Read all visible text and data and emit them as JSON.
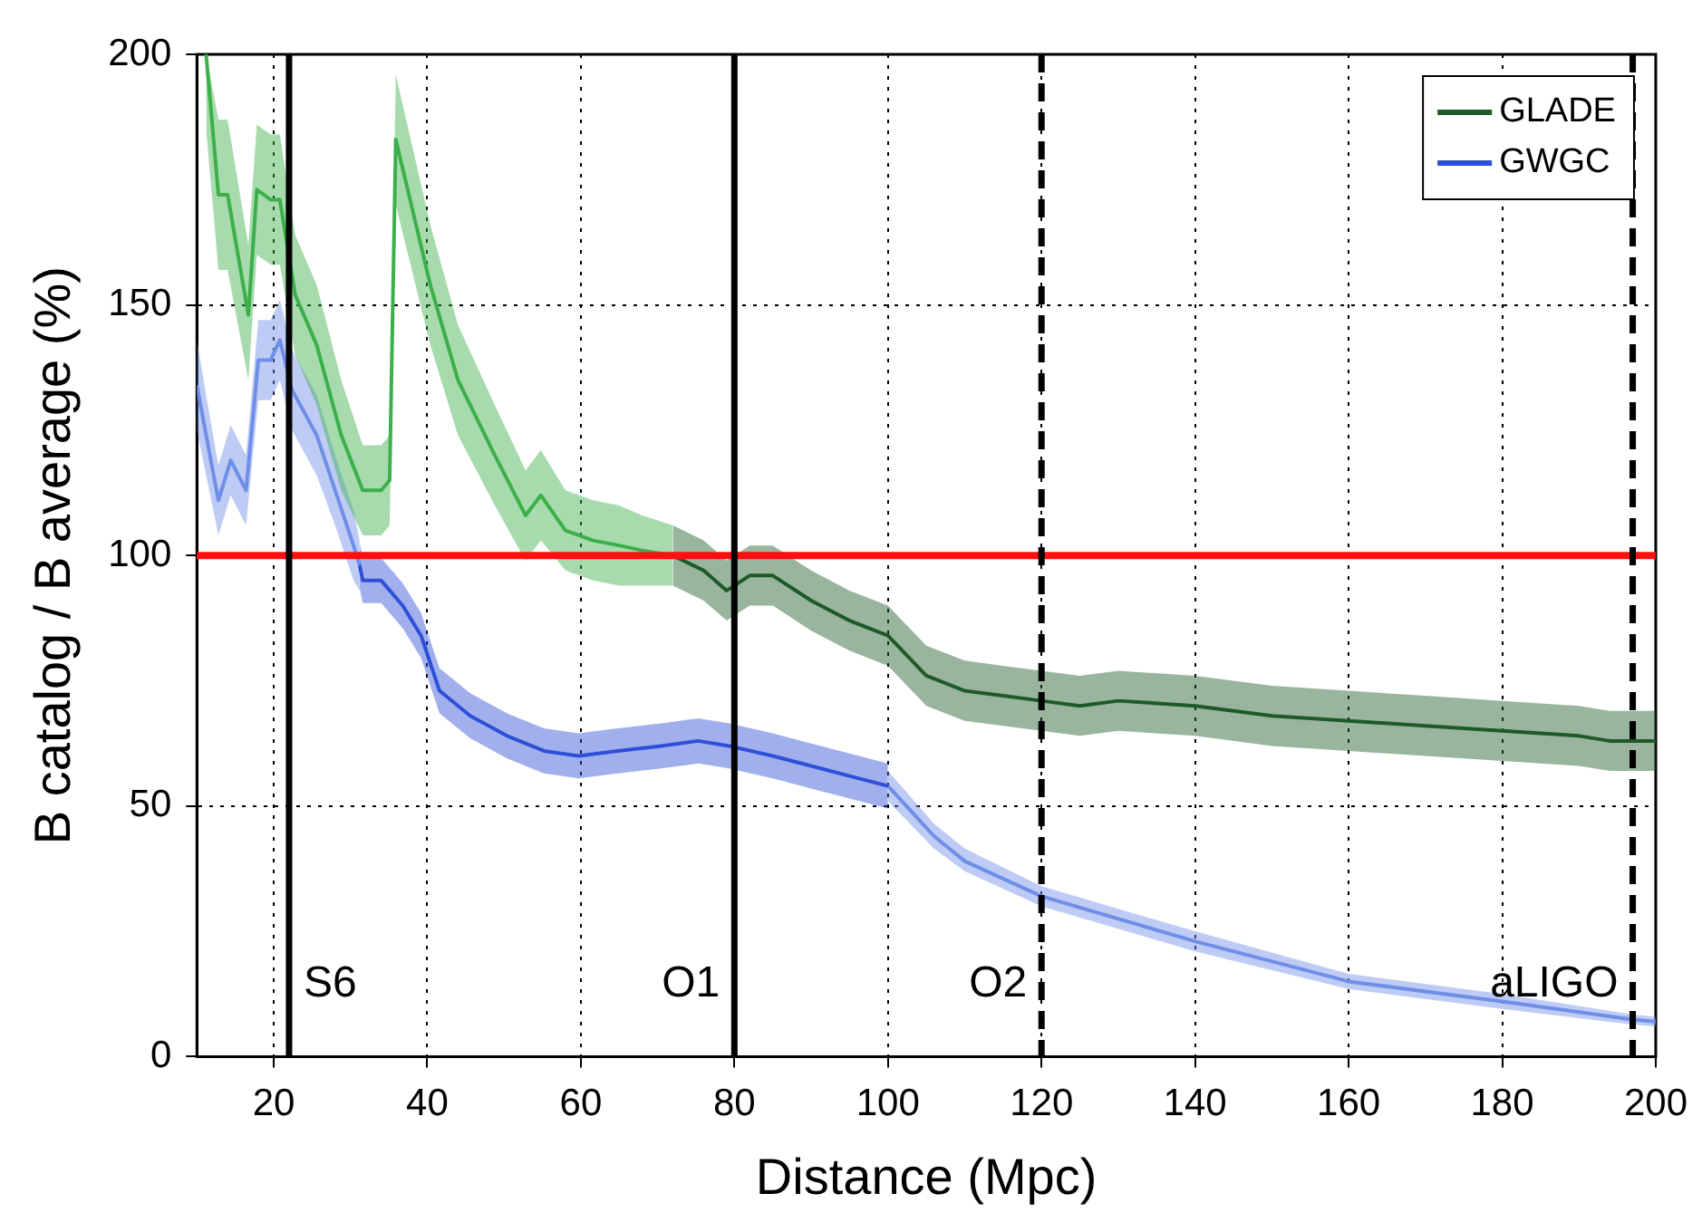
{
  "chart_data": {
    "type": "line",
    "xlabel": "Distance (Mpc)",
    "ylabel": "B catalog / B average (%)",
    "xlim": [
      10,
      200
    ],
    "xticks": [
      20,
      40,
      60,
      80,
      100,
      120,
      140,
      160,
      180,
      200
    ],
    "ylim": [
      0,
      200
    ],
    "yticks": [
      0,
      50,
      100,
      150,
      200
    ],
    "grid": true,
    "legend": "top right",
    "marker": "none",
    "series": [
      {
        "name": "GLADE",
        "color": "#1e5a28",
        "x": [
          72,
          76,
          79,
          82,
          85,
          90,
          95,
          100,
          105,
          110,
          115,
          120,
          125,
          130,
          140,
          150,
          160,
          170,
          180,
          190,
          194,
          197,
          200
        ],
        "values": [
          100,
          97,
          93,
          96,
          96,
          91,
          87,
          84,
          76,
          73,
          72,
          71,
          70,
          71,
          70,
          68,
          67,
          66,
          65,
          64,
          63,
          63,
          63
        ],
        "lower": [
          94,
          91,
          87,
          90,
          90,
          85,
          81,
          78,
          70,
          67,
          66,
          65,
          64,
          65,
          64,
          62,
          61,
          60,
          59,
          58,
          57,
          57,
          57
        ],
        "upper": [
          106,
          103,
          99,
          102,
          102,
          97,
          93,
          90,
          82,
          79,
          78,
          77,
          76,
          77,
          76,
          74,
          73,
          72,
          71,
          70,
          69,
          69,
          69
        ]
      },
      {
        "color": "#3cb04c",
        "x": [
          11.2,
          12.8,
          14,
          16.7,
          17.8,
          19.6,
          20.8,
          22.8,
          25.6,
          28.8,
          31.6,
          34,
          35.1,
          35.9,
          40.4,
          44,
          48.8,
          52.8,
          54.8,
          58,
          61.6,
          65,
          68,
          72
        ],
        "values": [
          200,
          172,
          172,
          148,
          173,
          171,
          171,
          152,
          142,
          124,
          113,
          113,
          115,
          183,
          154,
          135,
          120,
          108,
          112,
          105,
          103,
          102,
          101,
          100
        ],
        "lower": [
          185,
          157,
          157,
          135,
          160,
          158,
          158,
          140,
          130,
          113,
          104,
          104,
          106,
          170,
          142,
          124,
          110,
          99,
          103,
          97,
          95,
          94,
          94,
          94
        ],
        "upper": [
          200,
          187,
          187,
          162,
          186,
          184,
          184,
          164,
          154,
          135,
          122,
          122,
          124,
          196,
          166,
          146,
          130,
          117,
          121,
          113,
          111,
          110,
          108,
          106
        ]
      },
      {
        "name": "GWGC",
        "color": "#2e4fd8",
        "x": [
          31.2,
          31.6,
          34,
          36.8,
          39.2,
          41.6,
          45.6,
          50.4,
          55.2,
          59.7,
          64.8,
          70.5,
          75.3,
          79.3,
          85,
          90,
          95,
          100
        ],
        "values": [
          98,
          95,
          95,
          90,
          84,
          73,
          68,
          64,
          61,
          60,
          61,
          62,
          63,
          62,
          60,
          58,
          56,
          54
        ],
        "lower": [
          93.5,
          90.5,
          90.5,
          85.5,
          79.5,
          68.5,
          63.5,
          59.5,
          56.5,
          55.5,
          56.5,
          57.5,
          58.5,
          57.5,
          55.5,
          53.5,
          51.5,
          49.5
        ],
        "upper": [
          102.5,
          99.5,
          99.5,
          94.5,
          88.5,
          77.5,
          72.5,
          68.5,
          65.5,
          64.5,
          65.5,
          66.5,
          67.5,
          66.5,
          64.5,
          62.5,
          60.5,
          58.5
        ]
      },
      {
        "color": "#6f8fe8",
        "x": [
          10,
          11.2,
          12.8,
          14.4,
          16.4,
          18,
          19.6,
          20.8,
          22.4,
          25.6,
          28,
          30.4,
          31.2,
          null,
          100,
          106,
          110,
          120,
          140,
          160,
          180,
          197,
          200
        ],
        "values": [
          134,
          124,
          111,
          119,
          113,
          139,
          139,
          143,
          133,
          124,
          113,
          102,
          98,
          null,
          54,
          44,
          39,
          32,
          23,
          15,
          11,
          7.4,
          7
        ],
        "lower": [
          125,
          116,
          104,
          112,
          106,
          131,
          131,
          135,
          125,
          116,
          106,
          95,
          93,
          null,
          51,
          41.5,
          37,
          30,
          21,
          13.5,
          9.5,
          6.4,
          6
        ],
        "upper": [
          143,
          132,
          118,
          126,
          120,
          147,
          147,
          151,
          141,
          132,
          120,
          109,
          103,
          null,
          57,
          46.5,
          41.5,
          34,
          25,
          16.5,
          12.5,
          8.4,
          8
        ]
      }
    ],
    "ref_lines": [
      {
        "axis": "y",
        "value": 100,
        "color": "#ff1010",
        "line_style": "solid"
      },
      {
        "axis": "x",
        "value": 22,
        "label": "S6",
        "color": "#000000",
        "line_style": "solid"
      },
      {
        "axis": "x",
        "value": 80,
        "label": "O1",
        "color": "#000000",
        "line_style": "solid"
      },
      {
        "axis": "x",
        "value": 120,
        "label": "O2",
        "color": "#000000",
        "line_style": "dashed"
      },
      {
        "axis": "x",
        "value": 197,
        "label": "aLIGO",
        "color": "#000000",
        "line_style": "dashed"
      }
    ]
  }
}
